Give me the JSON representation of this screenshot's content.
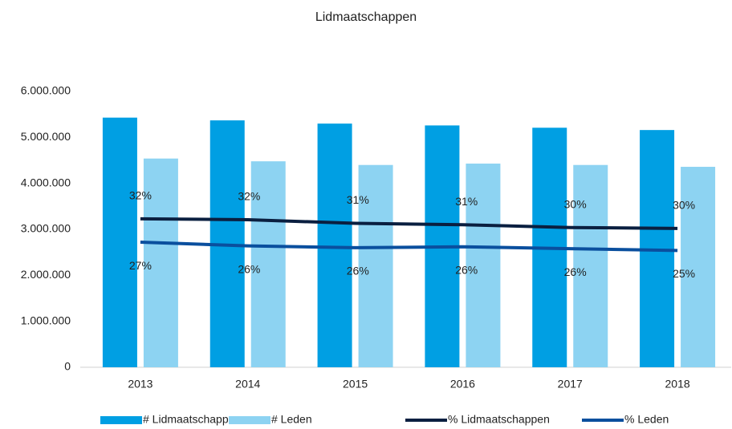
{
  "chart_data": {
    "type": "bar_line",
    "title": "Lidmaatschappen",
    "categories": [
      "2013",
      "2014",
      "2015",
      "2016",
      "2017",
      "2018"
    ],
    "series": [
      {
        "name": "# Lidmaatschappen",
        "type": "bar",
        "color": "#009fe3",
        "values": [
          5430000,
          5370000,
          5300000,
          5260000,
          5210000,
          5160000
        ]
      },
      {
        "name": "# Leden",
        "type": "bar",
        "color": "#8dd3f2",
        "values": [
          4540000,
          4480000,
          4400000,
          4430000,
          4400000,
          4360000
        ]
      },
      {
        "name": "% Lidmaatschappen",
        "type": "line",
        "axis": "y2",
        "color": "#0a1f40",
        "values": [
          32.3,
          32.1,
          31.3,
          31.0,
          30.4,
          30.2
        ],
        "value_labels": [
          "32%",
          "32%",
          "31%",
          "31%",
          "30%",
          "30%"
        ]
      },
      {
        "name": "% Leden",
        "type": "line",
        "axis": "y2",
        "color": "#0a4f9e",
        "values": [
          27.2,
          26.4,
          26.0,
          26.2,
          25.8,
          25.4
        ],
        "value_labels": [
          "27%",
          "26%",
          "26%",
          "26%",
          "26%",
          "25%"
        ]
      }
    ],
    "ylim": [
      0,
      6000000
    ],
    "yticks": [
      {
        "value": 0,
        "label": "0"
      },
      {
        "value": 1000000,
        "label": "1.000.000"
      },
      {
        "value": 2000000,
        "label": "2.000.000"
      },
      {
        "value": 3000000,
        "label": "3.000.000"
      },
      {
        "value": 4000000,
        "label": "4.000.000"
      },
      {
        "value": 5000000,
        "label": "5.000.000"
      },
      {
        "value": 6000000,
        "label": "6.000.000"
      }
    ],
    "y2lim": [
      0,
      60
    ],
    "legend": "bottom"
  }
}
